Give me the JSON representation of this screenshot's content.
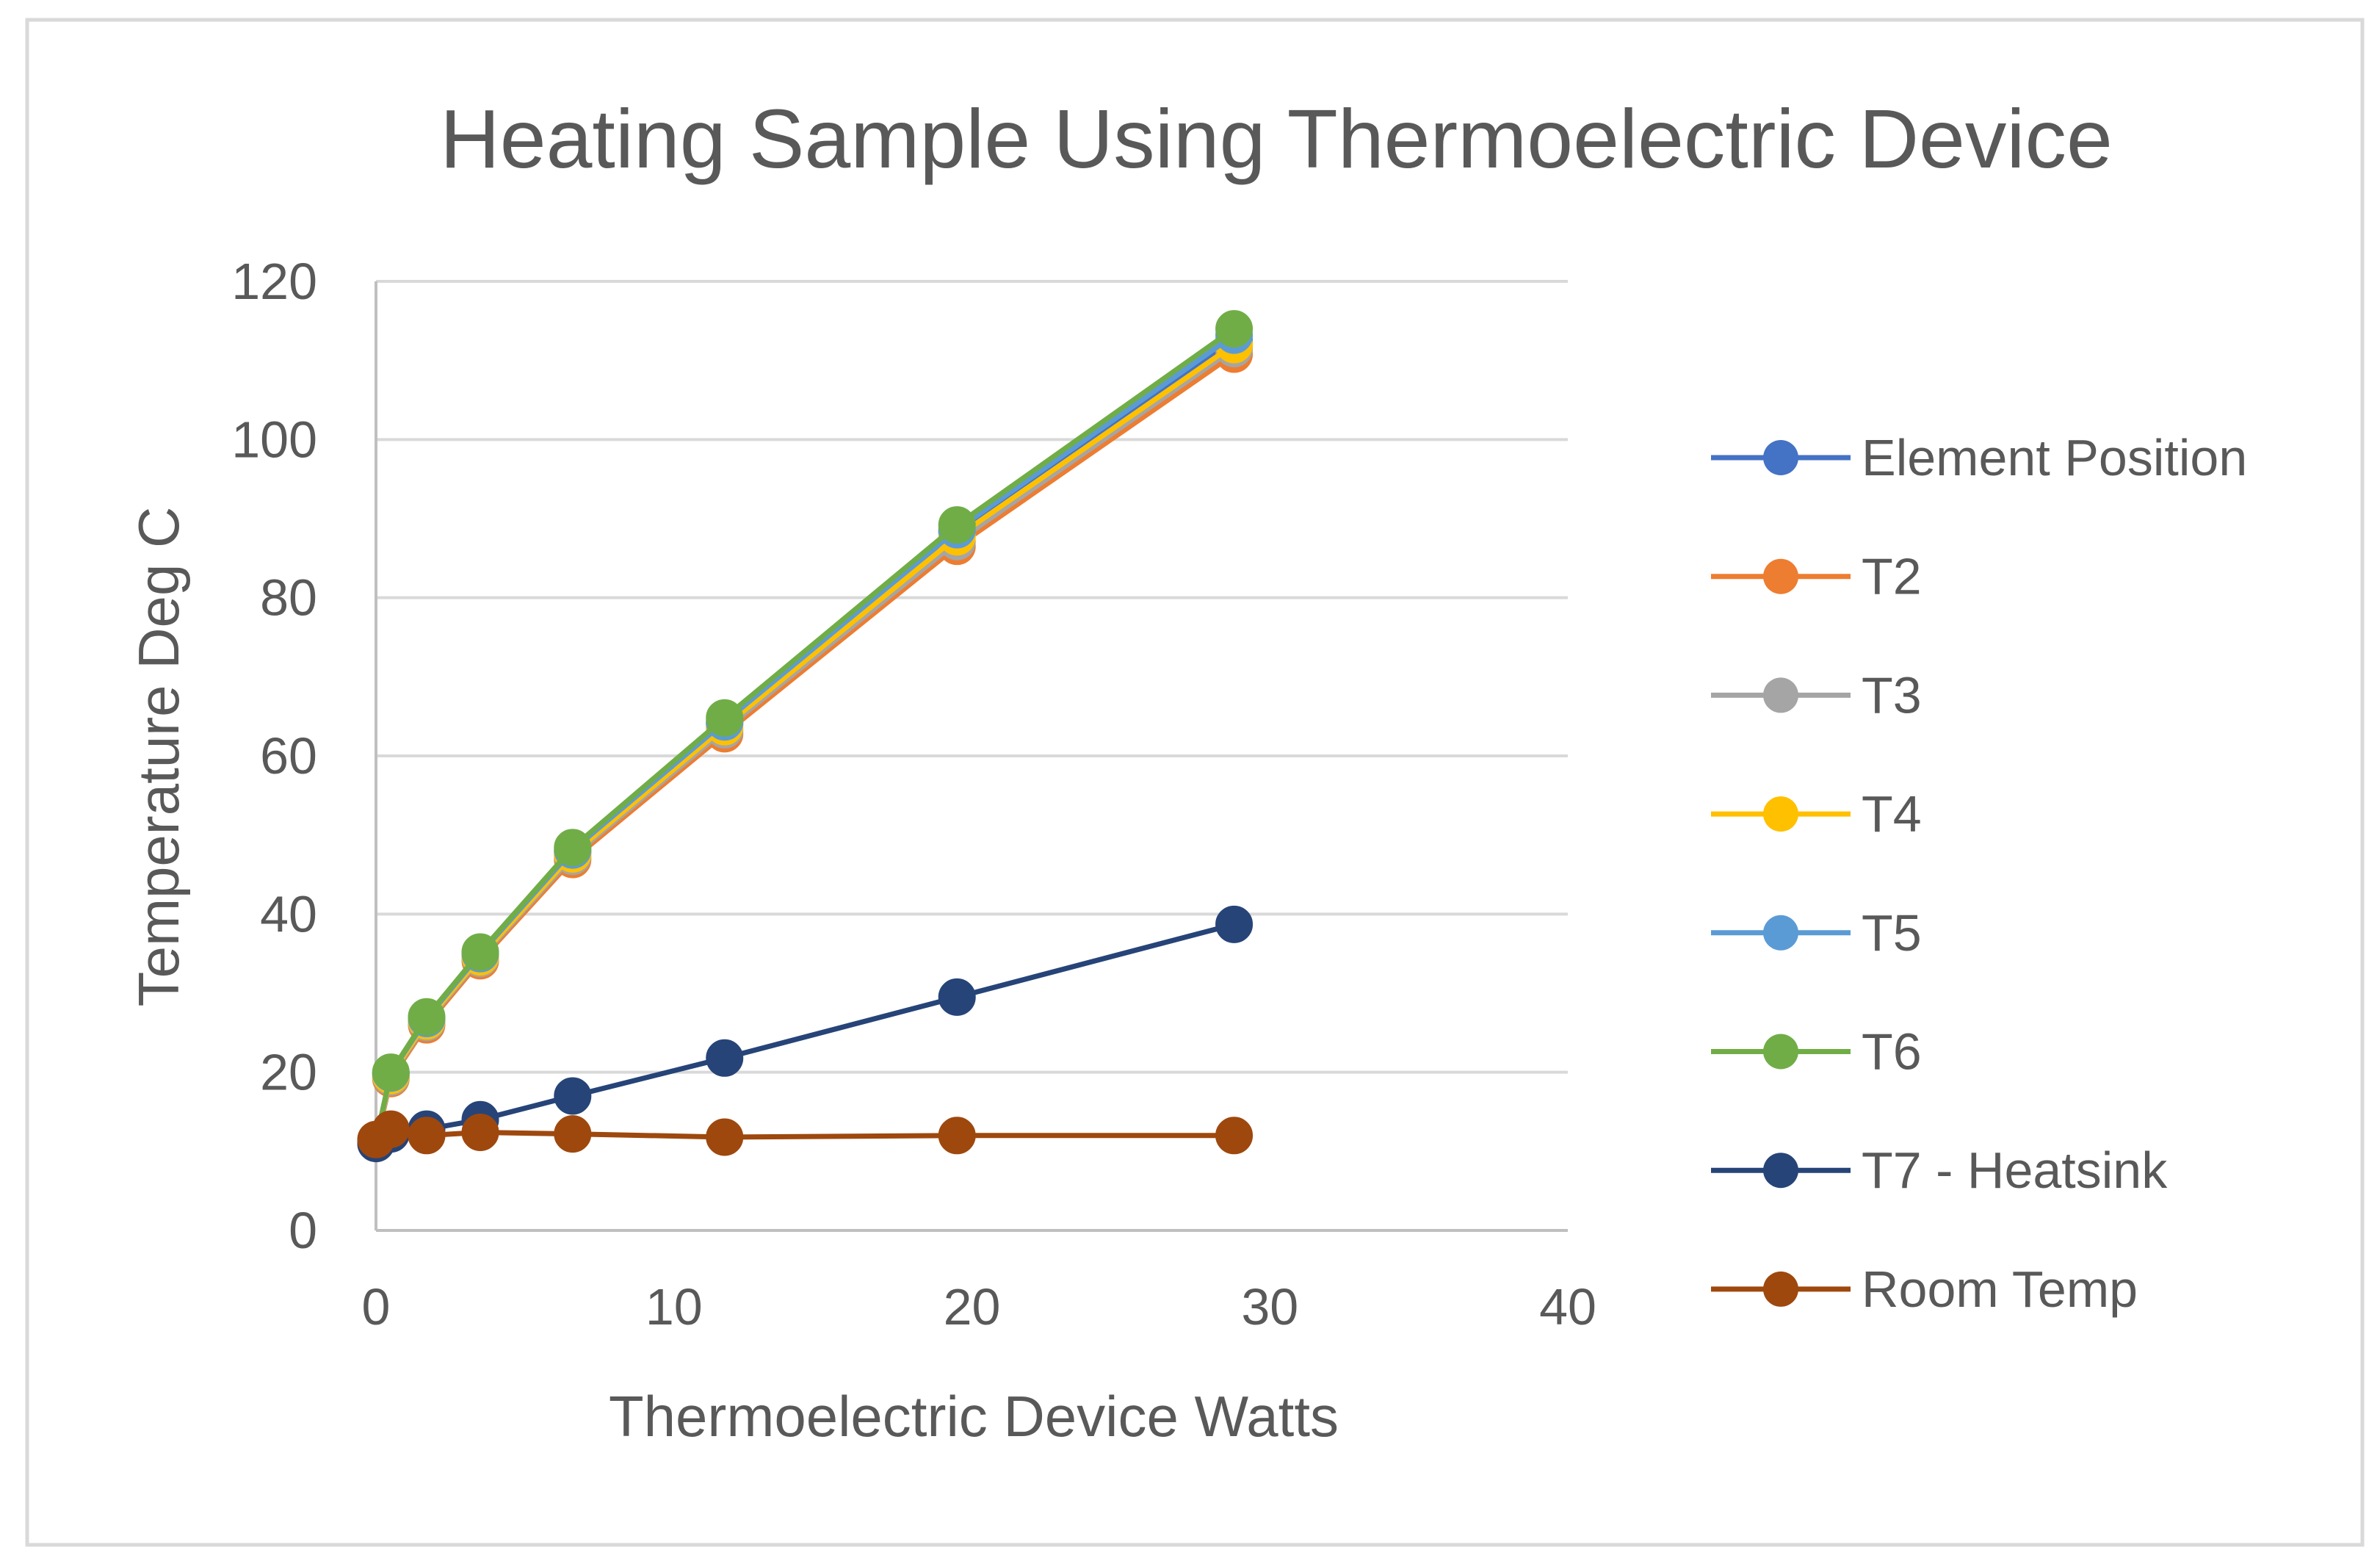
{
  "chart_data": {
    "type": "scatter",
    "title": "Heating Sample Using Thermoelectric Device",
    "xlabel": "Thermoelectric Device Watts",
    "ylabel": "Temperature  Deg C",
    "xlim": [
      0,
      40
    ],
    "ylim": [
      0,
      120
    ],
    "x_ticks": [
      "0",
      "10",
      "20",
      "30",
      "40"
    ],
    "y_ticks": [
      "0",
      "20",
      "40",
      "60",
      "80",
      "100",
      "120"
    ],
    "grid": "horizontal major gridlines",
    "legend_position": "right",
    "series": [
      {
        "name": "Element Position",
        "color": "#4472C4",
        "points": [
          [
            0,
            11.3
          ],
          [
            0.5,
            19.8
          ],
          [
            1.7,
            26.7
          ],
          [
            3.5,
            34.9
          ],
          [
            6.6,
            47.9
          ],
          [
            11.7,
            64.1
          ],
          [
            19.5,
            88.3
          ],
          [
            28.8,
            112.5
          ]
        ]
      },
      {
        "name": "T2",
        "color": "#ED7D31",
        "points": [
          [
            0,
            11.0
          ],
          [
            0.5,
            19.2
          ],
          [
            1.7,
            26.0
          ],
          [
            3.5,
            34.1
          ],
          [
            6.6,
            46.9
          ],
          [
            11.7,
            62.8
          ],
          [
            19.5,
            86.5
          ],
          [
            28.8,
            110.8
          ]
        ]
      },
      {
        "name": "T3",
        "color": "#A5A5A5",
        "points": [
          [
            0,
            11.1
          ],
          [
            0.5,
            19.4
          ],
          [
            1.7,
            26.3
          ],
          [
            3.5,
            34.4
          ],
          [
            6.6,
            47.3
          ],
          [
            11.7,
            63.3
          ],
          [
            19.5,
            87.1
          ],
          [
            28.8,
            111.5
          ]
        ]
      },
      {
        "name": "T4",
        "color": "#FFC000",
        "points": [
          [
            0,
            11.2
          ],
          [
            0.5,
            19.6
          ],
          [
            1.7,
            26.5
          ],
          [
            3.5,
            34.6
          ],
          [
            6.6,
            47.6
          ],
          [
            11.7,
            63.7
          ],
          [
            19.5,
            87.7
          ],
          [
            28.8,
            112.0
          ]
        ]
      },
      {
        "name": "T5",
        "color": "#5B9BD5",
        "points": [
          [
            0,
            11.3
          ],
          [
            0.5,
            19.9
          ],
          [
            1.7,
            26.8
          ],
          [
            3.5,
            35.0
          ],
          [
            6.6,
            48.1
          ],
          [
            11.7,
            64.3
          ],
          [
            19.5,
            88.6
          ],
          [
            28.8,
            113.2
          ]
        ]
      },
      {
        "name": "T6",
        "color": "#70AD47",
        "points": [
          [
            0,
            11.4
          ],
          [
            0.5,
            20.0
          ],
          [
            1.7,
            27.0
          ],
          [
            3.5,
            35.2
          ],
          [
            6.6,
            48.4
          ],
          [
            11.7,
            64.8
          ],
          [
            19.5,
            89.2
          ],
          [
            28.8,
            114.0
          ]
        ]
      },
      {
        "name": "T7 - Heatsink",
        "color": "#264478",
        "points": [
          [
            0,
            11.0
          ],
          [
            0.5,
            12.2
          ],
          [
            1.7,
            12.8
          ],
          [
            3.5,
            14.0
          ],
          [
            6.6,
            17.0
          ],
          [
            11.7,
            21.8
          ],
          [
            19.5,
            29.5
          ],
          [
            28.8,
            38.7
          ]
        ]
      },
      {
        "name": "Room Temp",
        "color": "#9E480E",
        "points": [
          [
            0,
            11.5
          ],
          [
            0.5,
            12.8
          ],
          [
            1.7,
            12.0
          ],
          [
            3.5,
            12.4
          ],
          [
            6.6,
            12.2
          ],
          [
            11.7,
            11.8
          ],
          [
            19.5,
            12.0
          ],
          [
            28.8,
            12.0
          ]
        ]
      }
    ]
  }
}
